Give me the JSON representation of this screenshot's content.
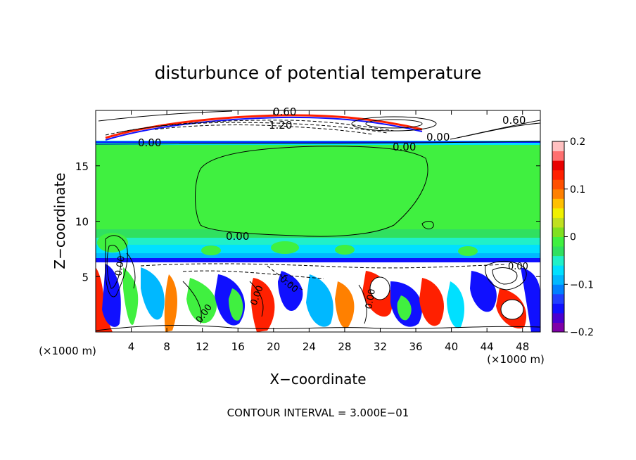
{
  "chart_data": {
    "type": "heatmap",
    "title": "disturbunce of potential temperature",
    "xlabel": "X−coordinate",
    "ylabel": "Z−coordinate",
    "x_unit": "(×1000 m)",
    "z_unit": "(×1000 m)",
    "footer": "CONTOUR INTERVAL = 3.000E−01",
    "xlim": [
      0,
      50
    ],
    "ylim": [
      0,
      20
    ],
    "x_ticks": [
      4,
      8,
      12,
      16,
      20,
      24,
      28,
      32,
      36,
      40,
      44,
      48
    ],
    "y_ticks": [
      5,
      10,
      15
    ],
    "colorbar": {
      "range": [
        -0.2,
        0.2
      ],
      "tick_values": [
        0.2,
        0.1,
        0,
        -0.1,
        -0.2
      ],
      "tick_labels": [
        "0.2",
        "0.1",
        "0",
        "−0.1",
        "−0.2"
      ],
      "colors": [
        "#7f00a8",
        "#4a00d0",
        "#1010ff",
        "#2040ff",
        "#0080ff",
        "#00b8ff",
        "#00e0ff",
        "#20f0c8",
        "#30e060",
        "#40f040",
        "#80e020",
        "#c0e020",
        "#f0f000",
        "#ffc000",
        "#ff8000",
        "#ff5000",
        "#ff2000",
        "#e80000",
        "#ff7070",
        "#ffc0c0"
      ]
    },
    "contour_labels": [
      "0.60",
      "1.20",
      "0.60",
      "0.00",
      "0.00",
      "0.00",
      "0.00",
      "0.00",
      "0.00",
      "0.00",
      "0.00",
      "0.00",
      "0.00"
    ]
  }
}
